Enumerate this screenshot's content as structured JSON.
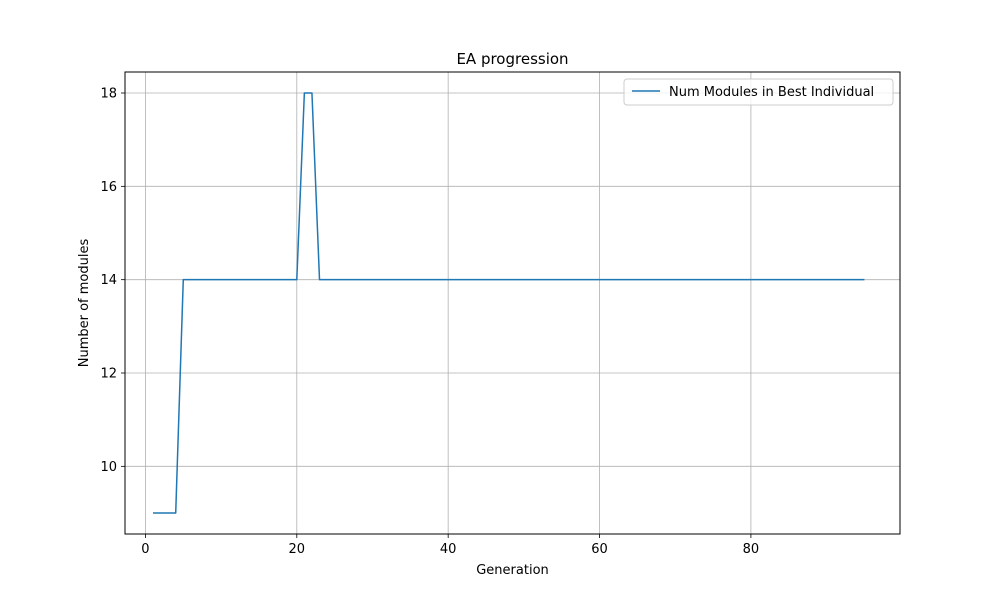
{
  "chart_data": {
    "type": "line",
    "title": "EA progression",
    "xlabel": "Generation",
    "ylabel": "Number of modules",
    "xlim": [
      -2.7,
      99.7
    ],
    "ylim": [
      8.55,
      18.45
    ],
    "xticks": [
      0,
      20,
      40,
      60,
      80
    ],
    "yticks": [
      10,
      12,
      14,
      16,
      18
    ],
    "grid": true,
    "legend_position": "top-right",
    "series": [
      {
        "name": "Num Modules in Best Individual",
        "color": "#1f77b4",
        "points": [
          [
            1,
            9
          ],
          [
            4,
            9
          ],
          [
            5,
            14
          ],
          [
            20,
            14
          ],
          [
            21,
            18
          ],
          [
            22,
            18
          ],
          [
            23,
            14
          ],
          [
            95,
            14
          ]
        ]
      }
    ]
  }
}
